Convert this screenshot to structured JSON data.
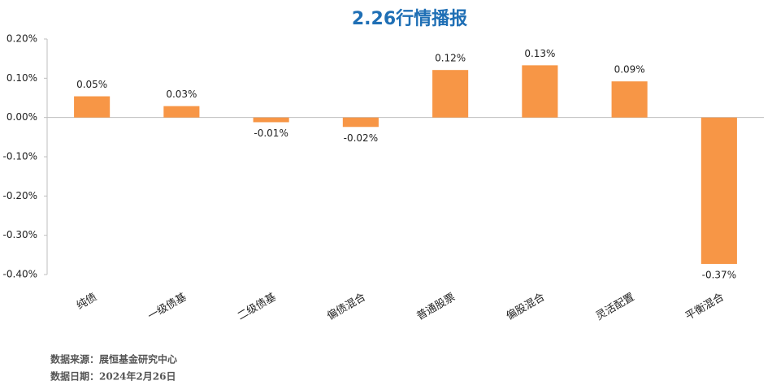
{
  "chart_data": {
    "type": "bar",
    "title": "2.26行情播报",
    "categories": [
      "纯债",
      "一级债基",
      "二级债基",
      "偏债混合",
      "普通股票",
      "偏股混合",
      "灵活配置",
      "平衡混合"
    ],
    "values": [
      0.054,
      0.029,
      -0.012,
      -0.024,
      0.121,
      0.133,
      0.092,
      -0.373
    ],
    "value_labels": [
      "0.05%",
      "0.03%",
      "-0.01%",
      "-0.02%",
      "0.12%",
      "0.13%",
      "0.09%",
      "-0.37%"
    ],
    "color": "#f79646",
    "ylim": [
      -0.4,
      0.2
    ],
    "yticks": [
      {
        "value": -0.4,
        "label": "-0.40%"
      },
      {
        "value": -0.3,
        "label": "-0.30%"
      },
      {
        "value": -0.2,
        "label": "-0.20%"
      },
      {
        "value": -0.1,
        "label": "-0.10%"
      },
      {
        "value": 0,
        "label": "0.00%"
      },
      {
        "value": 0.1,
        "label": "0.10%"
      },
      {
        "value": 0.2,
        "label": "0.20%"
      }
    ],
    "grid": false,
    "footnotes": [
      "数据来源：展恒基金研究中心",
      "数据日期：2024年2月26日"
    ]
  }
}
